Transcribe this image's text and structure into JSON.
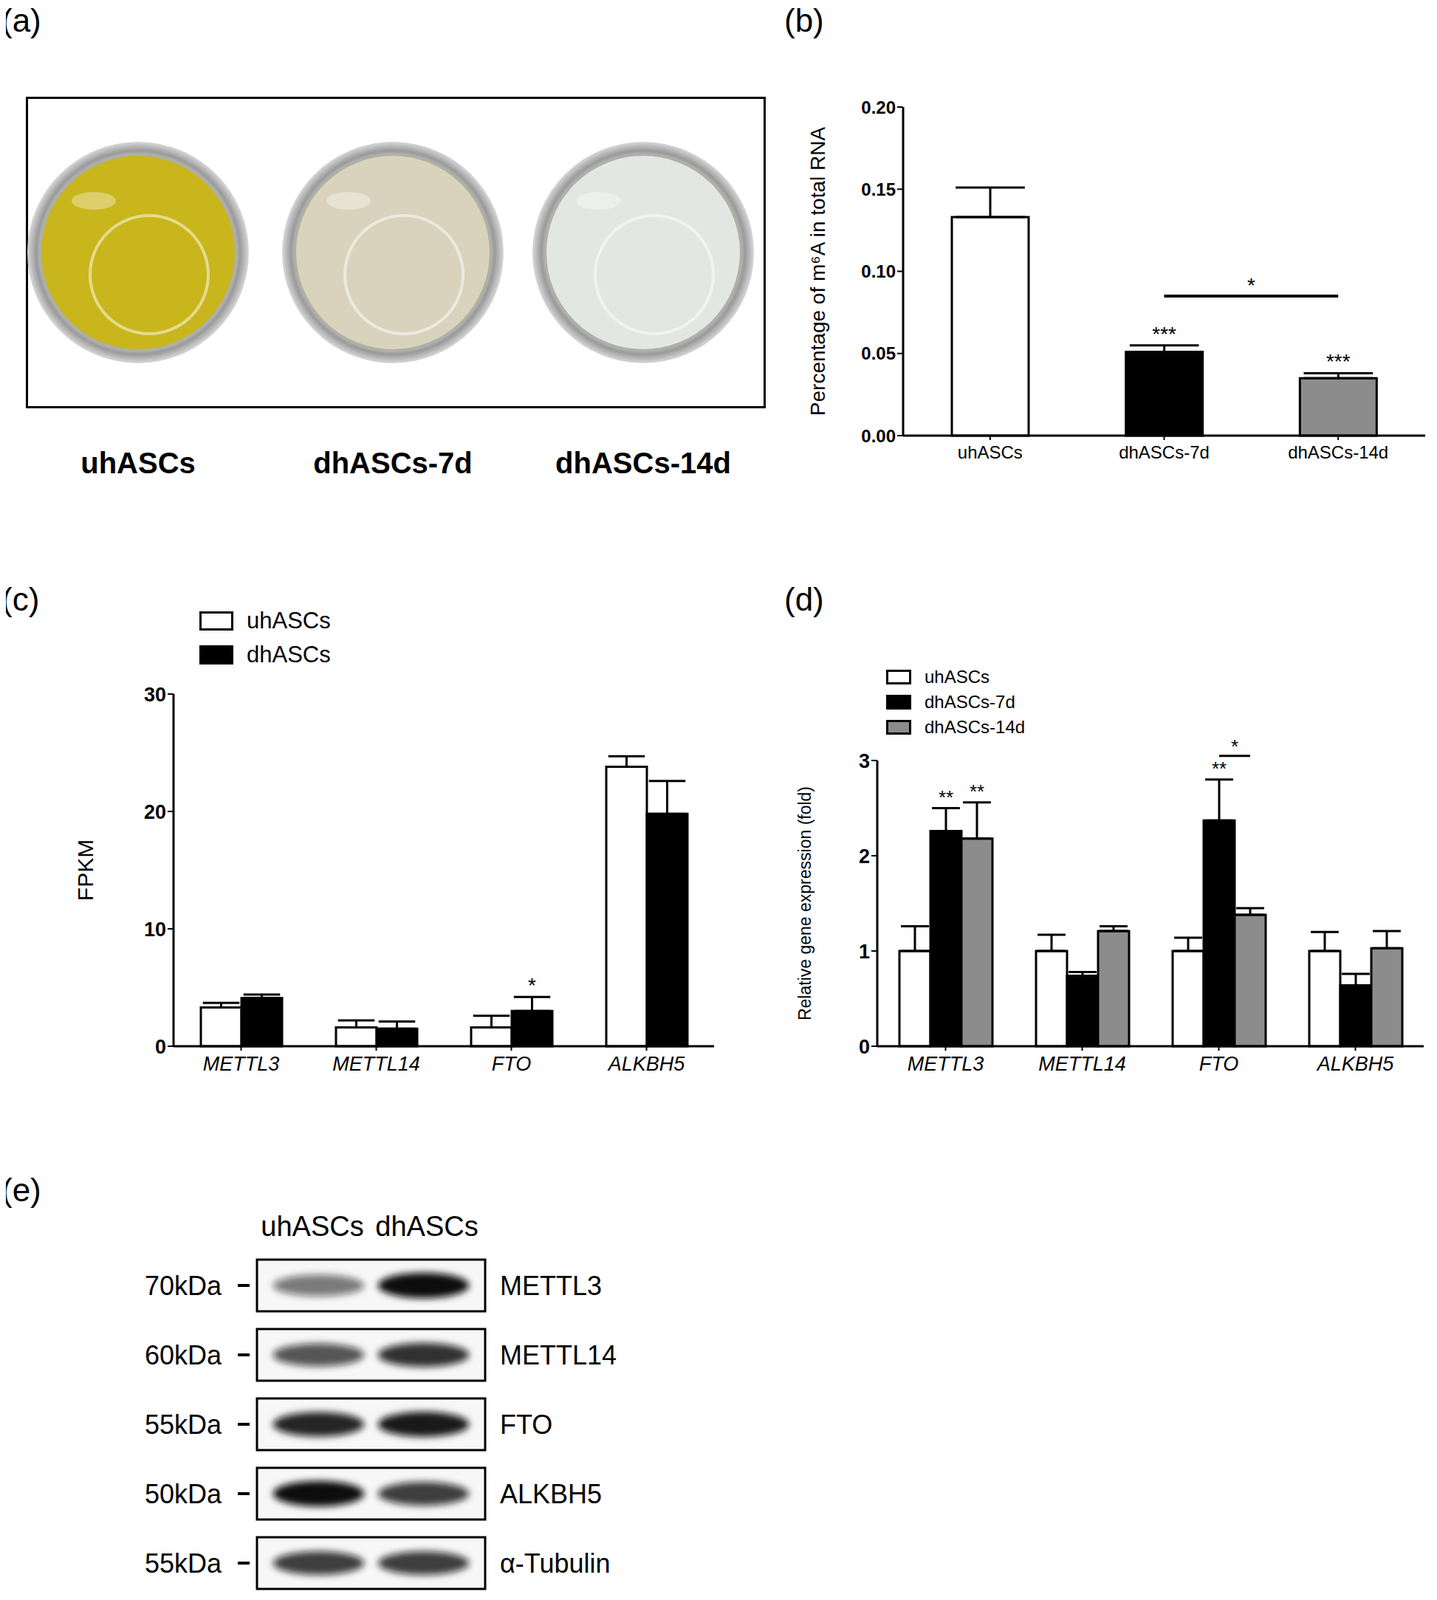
{
  "panel_a": {
    "label": "(a)",
    "samples": [
      "uhASCs",
      "dhASCs-7d",
      "dhASCs-14d"
    ],
    "colors": [
      "#c9b61c",
      "#d9d3bd",
      "#e3e7e4"
    ]
  },
  "chart_data": [
    {
      "label": "(b)",
      "type": "bar",
      "categories": [
        "uhASCs",
        "dhASCs-7d",
        "dhASCs-14d"
      ],
      "values": [
        0.133,
        0.051,
        0.035
      ],
      "errors": [
        0.018,
        0.004,
        0.003
      ],
      "significance": [
        null,
        "***",
        "***"
      ],
      "brackets": [
        {
          "from": "dhASCs-7d",
          "to": "dhASCs-14d",
          "label": "*"
        }
      ],
      "colors": [
        "#ffffff",
        "#000000",
        "#8c8c8c"
      ],
      "ylabel": "Percentage of m⁶A in total RNA",
      "ylim": [
        0,
        0.2
      ],
      "yticks": [
        {
          "value": 0,
          "label": "0.00"
        },
        {
          "value": 0.05,
          "label": "0.05"
        },
        {
          "value": 0.1,
          "label": "0.10"
        },
        {
          "value": 0.15,
          "label": "0.15"
        },
        {
          "value": 0.2,
          "label": "0.20"
        }
      ]
    },
    {
      "label": "(c)",
      "type": "bar",
      "ylabel": "FPKM",
      "categories": [
        "METTL3",
        "METTL14",
        "FTO",
        "ALKBH5"
      ],
      "series": [
        {
          "name": "uhASCs",
          "color": "#ffffff",
          "values": [
            3.3,
            1.6,
            1.6,
            23.8
          ],
          "errors": [
            0.4,
            0.6,
            1.0,
            0.9
          ]
        },
        {
          "name": "dhASCs",
          "color": "#000000",
          "values": [
            4.1,
            1.5,
            3.0,
            19.8
          ],
          "errors": [
            0.3,
            0.6,
            1.2,
            2.8
          ],
          "significance": [
            null,
            null,
            "*",
            null
          ]
        }
      ],
      "ylim": [
        0,
        30
      ],
      "yticks": [
        0,
        10,
        20,
        30
      ],
      "legend": "upper left"
    },
    {
      "label": "(d)",
      "type": "bar",
      "ylabel": "Relative gene expression (fold)",
      "categories": [
        "METTL3",
        "METTL14",
        "FTO",
        "ALKBH5"
      ],
      "series": [
        {
          "name": "uhASCs",
          "color": "#ffffff",
          "values": [
            1,
            1,
            1,
            1
          ],
          "errors": [
            0.26,
            0.17,
            0.14,
            0.2
          ]
        },
        {
          "name": "dhASCs-7d",
          "color": "#000000",
          "values": [
            2.26,
            0.74,
            2.37,
            0.64
          ],
          "errors": [
            0.24,
            0.04,
            0.43,
            0.12
          ],
          "significance": [
            "**",
            null,
            "**",
            null
          ]
        },
        {
          "name": "dhASCs-14d",
          "color": "#8c8c8c",
          "values": [
            2.18,
            1.21,
            1.38,
            1.03
          ],
          "errors": [
            0.38,
            0.05,
            0.07,
            0.18
          ],
          "significance": [
            "**",
            null,
            null,
            null
          ]
        }
      ],
      "brackets": [
        {
          "category": "FTO",
          "from": "dhASCs-7d",
          "to": "dhASCs-14d",
          "label": "*"
        }
      ],
      "ylim": [
        0,
        3
      ],
      "yticks": [
        0,
        1,
        2,
        3
      ],
      "legend": "upper left"
    }
  ],
  "panel_e": {
    "label": "(e)",
    "lanes": [
      "uhASCs",
      "dhASCs"
    ],
    "rows": [
      {
        "ladder": "70kDa",
        "protein": "METTL3",
        "intensity": [
          0.55,
          1.0
        ]
      },
      {
        "ladder": "60kDa",
        "protein": "METTL14",
        "intensity": [
          0.7,
          0.85
        ]
      },
      {
        "ladder": "55kDa",
        "protein": "FTO",
        "intensity": [
          0.9,
          0.95
        ]
      },
      {
        "ladder": "50kDa",
        "protein": "ALKBH5",
        "intensity": [
          1.0,
          0.8
        ]
      },
      {
        "ladder": "55kDa",
        "protein": "α-Tubulin",
        "intensity": [
          0.8,
          0.8
        ]
      }
    ]
  }
}
